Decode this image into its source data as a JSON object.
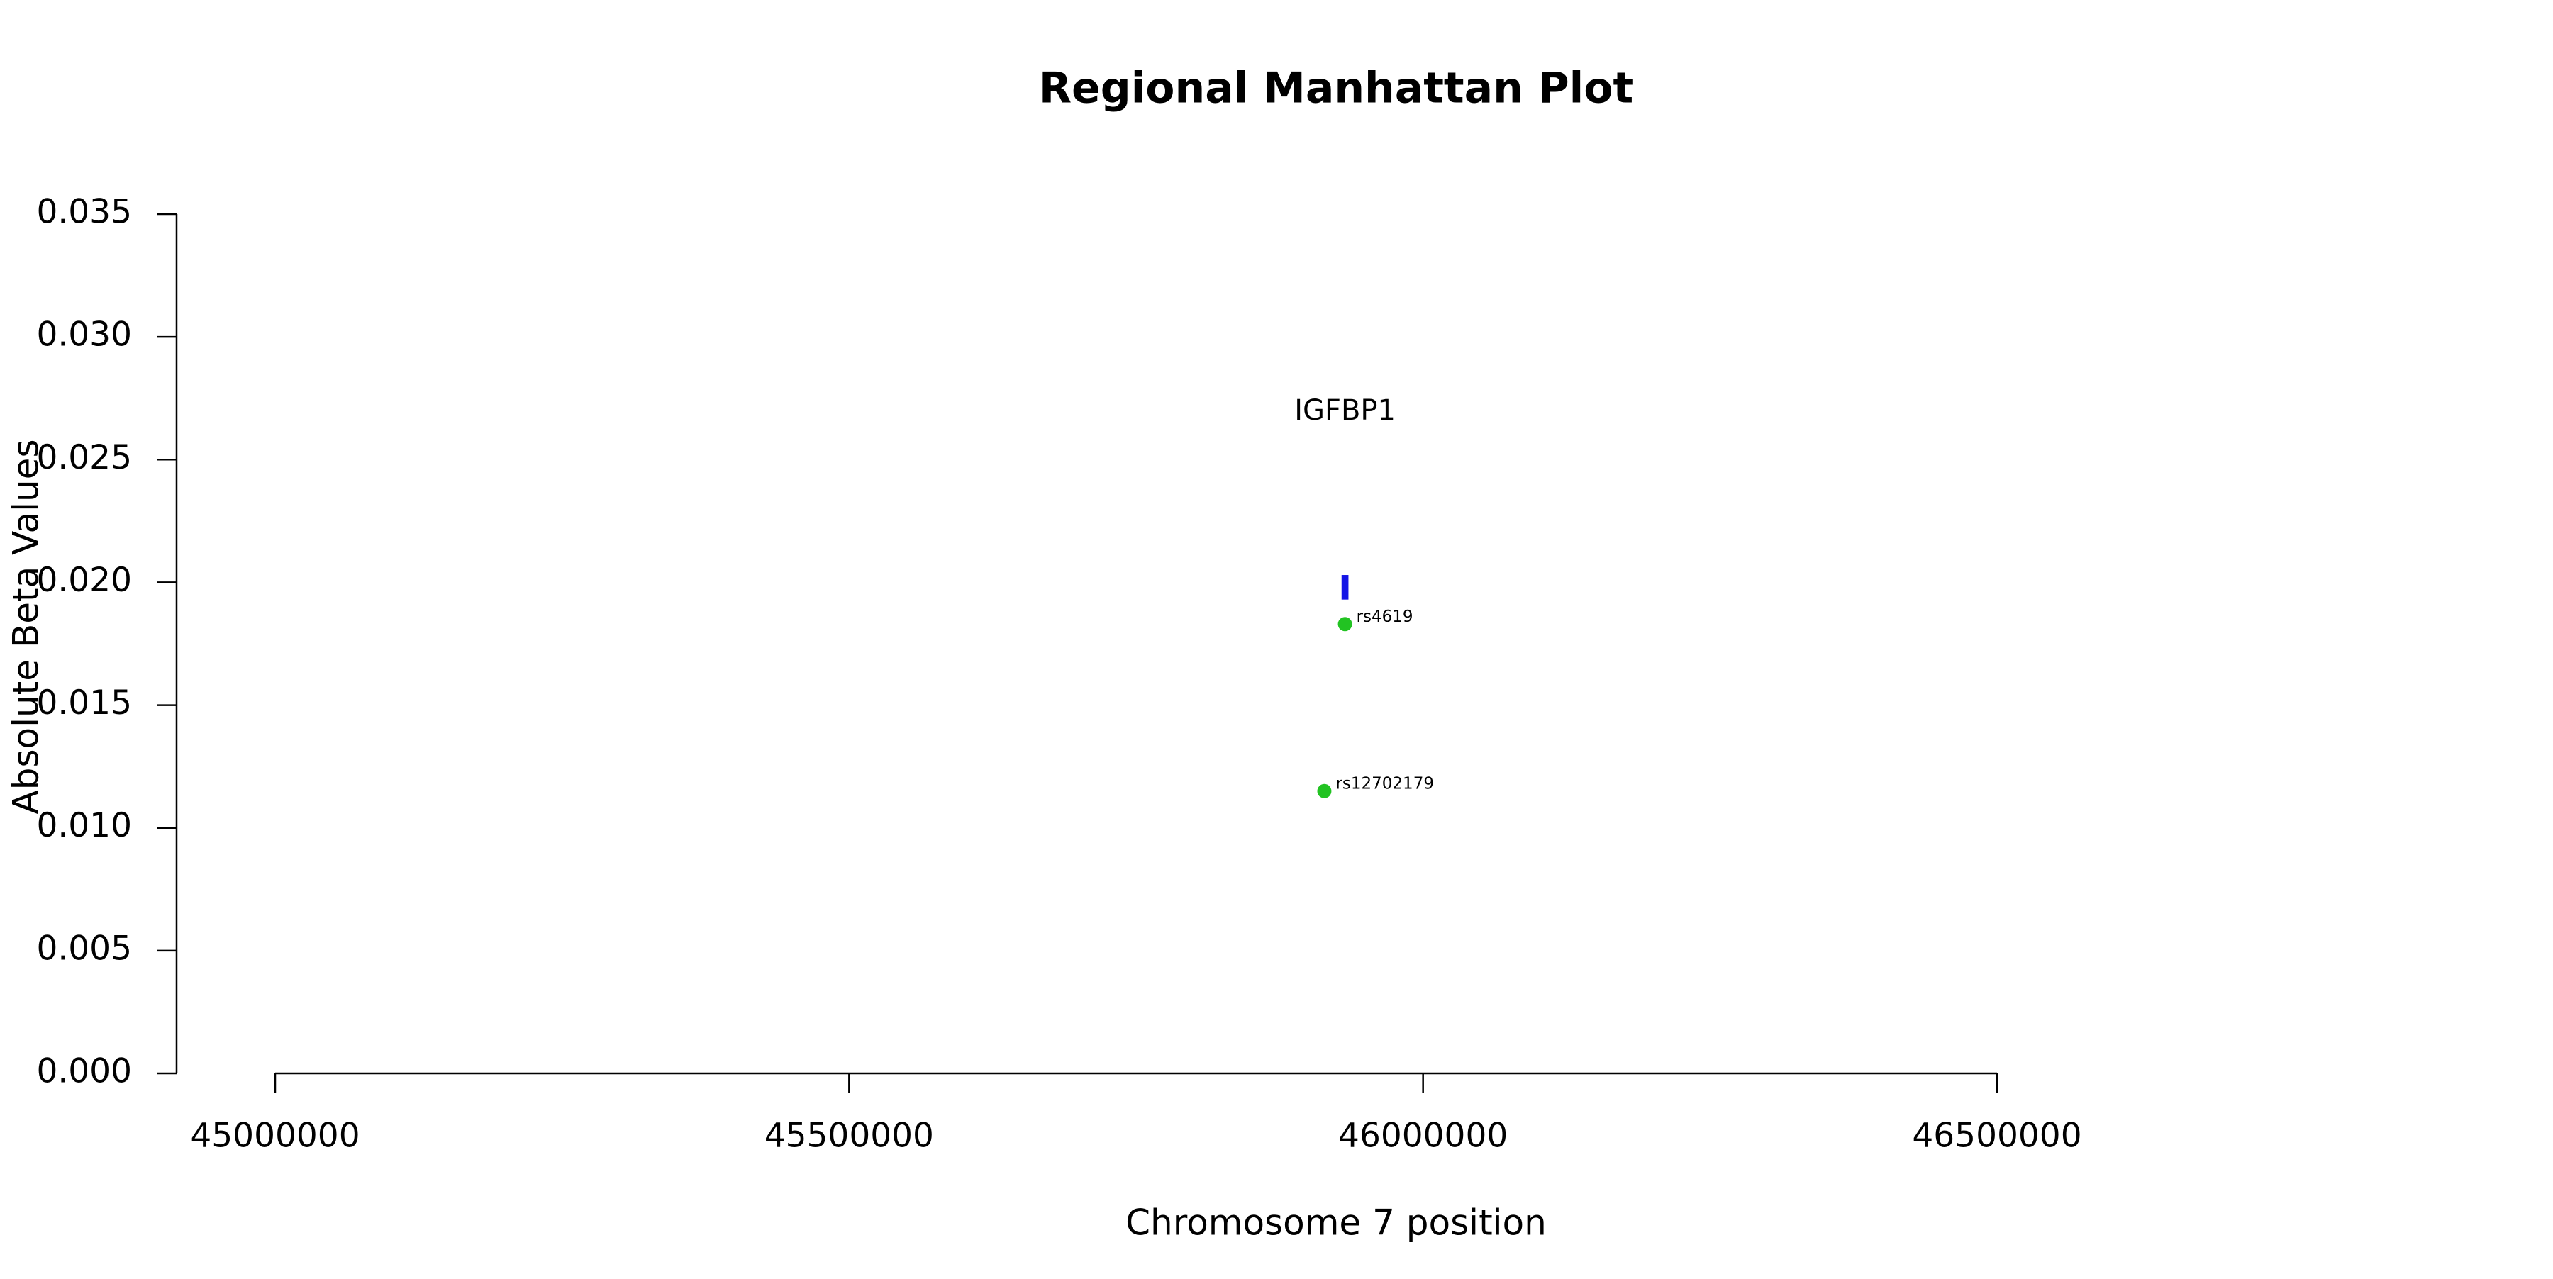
{
  "chart_data": {
    "type": "scatter",
    "title": "Regional Manhattan Plot",
    "x_label": "Chromosome 7 position",
    "y_label": "Absolute Beta Values",
    "xlim": [
      45000000,
      46500000
    ],
    "xticks": [
      45000000,
      45500000,
      46000000,
      46500000
    ],
    "ylim": [
      0,
      0.035
    ],
    "yticks": [
      {
        "value": 0,
        "label": "0.000"
      },
      {
        "value": 0.005,
        "label": "0.005"
      },
      {
        "value": 0.01,
        "label": "0.010"
      },
      {
        "value": 0.015,
        "label": "0.015"
      },
      {
        "value": 0.02,
        "label": "0.020"
      },
      {
        "value": 0.025,
        "label": "0.025"
      },
      {
        "value": 0.03,
        "label": "0.030"
      },
      {
        "value": 0.035,
        "label": "0.035"
      }
    ],
    "series": [
      {
        "color": "#22c322",
        "x": [
          45914000,
          45932000
        ],
        "values": [
          0.0115,
          0.0183
        ],
        "point_labels": [
          "rs12702179",
          "rs4619"
        ]
      }
    ],
    "genes": [
      {
        "name": "IGFBP1",
        "color": "#1414e6",
        "start": 45929000,
        "end": 45935000,
        "ymin": 0.0193,
        "ymax": 0.0203
      }
    ]
  }
}
